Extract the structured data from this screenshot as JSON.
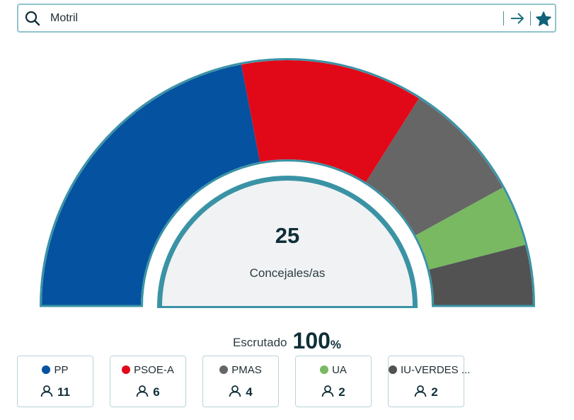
{
  "search": {
    "value": "Motril"
  },
  "center": {
    "total_seats": "25",
    "total_label": "Concejales/as"
  },
  "scrutiny": {
    "label": "Escrutado",
    "value": "100",
    "unit": "%"
  },
  "colors": {
    "accent": "#3a93a5",
    "inner_fill": "#f1f2f4"
  },
  "chart_data": {
    "type": "pie",
    "shape": "semicircle",
    "categories": [
      "PP",
      "PSOE-A",
      "PMAS",
      "UA",
      "IU-VERDES ..."
    ],
    "values": [
      11,
      6,
      4,
      2,
      2
    ],
    "colors": [
      "#0452a0",
      "#e10918",
      "#666666",
      "#78b962",
      "#525252"
    ],
    "total": 25
  },
  "parties": [
    {
      "name": "PP",
      "seats": "11",
      "color": "#0452a0"
    },
    {
      "name": "PSOE-A",
      "seats": "6",
      "color": "#e10918"
    },
    {
      "name": "PMAS",
      "seats": "4",
      "color": "#666666"
    },
    {
      "name": "UA",
      "seats": "2",
      "color": "#78b962"
    },
    {
      "name": "IU-VERDES ...",
      "seats": "2",
      "color": "#525252"
    }
  ]
}
